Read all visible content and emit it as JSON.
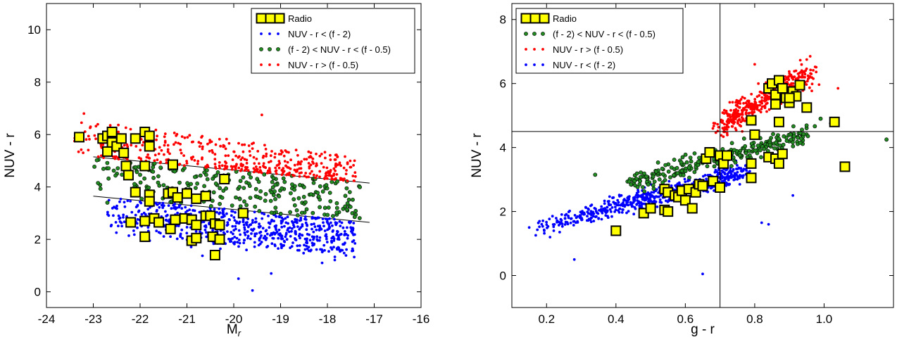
{
  "colors": {
    "radio_fill": "#ffff00",
    "radio_edge": "#000000",
    "blue": "#0000ff",
    "green": "#228b22",
    "red": "#ff0000",
    "reference_line": "#000000"
  },
  "chart_data": [
    {
      "type": "scatter",
      "title": "",
      "xlabel": "M",
      "xlabel_sub": "r",
      "ylabel": "NUV - r",
      "xlim": [
        -24,
        -16
      ],
      "ylim": [
        -0.6,
        11
      ],
      "xticks": [
        -24,
        -23,
        -22,
        -21,
        -20,
        -19,
        -18,
        -17,
        -16
      ],
      "xtick_labels": [
        "-24",
        "-23",
        "-22",
        "-21",
        "-20",
        "-19",
        "-18",
        "-17",
        "-16"
      ],
      "yticks": [
        0,
        2,
        4,
        6,
        8,
        10
      ],
      "ytick_labels": [
        "0",
        "2",
        "4",
        "6",
        "8",
        "10"
      ],
      "grid": false,
      "legend_position": "top-right",
      "legend": [
        {
          "label": "Radio",
          "marker": "square",
          "color": "#ffff00"
        },
        {
          "label": "NUV - r < (f - 2)",
          "marker": "dot",
          "color": "#0000ff"
        },
        {
          "label": "(f - 2) < NUV - r < (f - 0.5)",
          "marker": "circle",
          "color": "#228b22"
        },
        {
          "label": "NUV - r > (f - 0.5)",
          "marker": "dot",
          "color": "#ff0000"
        }
      ],
      "lines": [
        {
          "x": [
            -23,
            -17.1
          ],
          "y": [
            5.15,
            4.15
          ]
        },
        {
          "x": [
            -23,
            -17.1
          ],
          "y": [
            3.65,
            2.65
          ]
        }
      ],
      "clouds": [
        {
          "series": "blue",
          "count": 650,
          "x_range": [
            -22.7,
            -17.4
          ],
          "upper": {
            "x": [
              -23,
              -17.1
            ],
            "y": [
              3.65,
              2.65
            ]
          },
          "floor": {
            "x": [
              -22.7,
              -17.4
            ],
            "y": [
              2.2,
              1.4
            ]
          },
          "extras": [
            [
              -19.9,
              0.5
            ],
            [
              -19.6,
              0.05
            ],
            [
              -19.2,
              0.7
            ]
          ]
        },
        {
          "series": "green",
          "count": 250,
          "x_range": [
            -23.0,
            -17.3
          ],
          "lower": {
            "x": [
              -23,
              -17.1
            ],
            "y": [
              3.65,
              2.65
            ]
          },
          "upper": {
            "x": [
              -23,
              -17.1
            ],
            "y": [
              5.15,
              4.15
            ]
          },
          "extras": [
            [
              -22.9,
              4.15
            ],
            [
              -22.7,
              3.4
            ]
          ]
        },
        {
          "series": "red",
          "count": 430,
          "x_range": [
            -23.4,
            -17.4
          ],
          "lower": {
            "x": [
              -23,
              -17.1
            ],
            "y": [
              5.15,
              4.15
            ]
          },
          "ceiling": {
            "x": [
              -23.4,
              -17.4
            ],
            "y": [
              6.6,
              5.2
            ]
          },
          "extras": [
            [
              -23.4,
              5.75
            ],
            [
              -23.2,
              6.8
            ],
            [
              -19.4,
              6.75
            ],
            [
              -17.6,
              4.5
            ],
            [
              -17.4,
              4.4
            ]
          ]
        }
      ],
      "series": [
        {
          "name": "Radio",
          "marker": "square",
          "points": [
            [
              -23.3,
              5.9
            ],
            [
              -22.8,
              5.85
            ],
            [
              -22.7,
              5.95
            ],
            [
              -22.6,
              6.1
            ],
            [
              -22.6,
              5.7
            ],
            [
              -22.7,
              5.35
            ],
            [
              -22.5,
              5.55
            ],
            [
              -22.4,
              5.85
            ],
            [
              -22.35,
              5.3
            ],
            [
              -22.1,
              5.85
            ],
            [
              -21.9,
              6.1
            ],
            [
              -21.8,
              5.95
            ],
            [
              -21.8,
              5.55
            ],
            [
              -22.3,
              4.8
            ],
            [
              -22.25,
              4.45
            ],
            [
              -21.9,
              4.8
            ],
            [
              -21.3,
              4.85
            ],
            [
              -20.2,
              4.3
            ],
            [
              -22.1,
              3.8
            ],
            [
              -21.8,
              3.7
            ],
            [
              -21.8,
              3.45
            ],
            [
              -21.4,
              3.75
            ],
            [
              -21.3,
              3.8
            ],
            [
              -21.2,
              3.6
            ],
            [
              -21.0,
              3.75
            ],
            [
              -20.8,
              3.55
            ],
            [
              -20.6,
              3.65
            ],
            [
              -22.2,
              2.65
            ],
            [
              -21.9,
              2.7
            ],
            [
              -21.7,
              2.8
            ],
            [
              -21.6,
              2.65
            ],
            [
              -21.35,
              2.4
            ],
            [
              -21.25,
              2.75
            ],
            [
              -21.05,
              2.8
            ],
            [
              -20.9,
              2.75
            ],
            [
              -20.8,
              2.55
            ],
            [
              -20.6,
              2.9
            ],
            [
              -20.5,
              2.9
            ],
            [
              -20.4,
              2.6
            ],
            [
              -20.3,
              2.55
            ],
            [
              -19.8,
              3.0
            ],
            [
              -21.9,
              2.1
            ],
            [
              -20.9,
              1.95
            ],
            [
              -20.8,
              2.05
            ],
            [
              -20.45,
              2.1
            ],
            [
              -20.3,
              2.0
            ],
            [
              -20.4,
              1.4
            ]
          ]
        }
      ]
    },
    {
      "type": "scatter",
      "title": "",
      "xlabel": "g - r",
      "ylabel": "NUV - r",
      "xlim": [
        0.1,
        1.2
      ],
      "ylim": [
        -1,
        8.5
      ],
      "xticks": [
        0.2,
        0.4,
        0.6,
        0.8,
        1.0
      ],
      "xtick_labels": [
        "0.2",
        "0.4",
        "0.6",
        "0.8",
        "1.0"
      ],
      "yticks": [
        0,
        2,
        4,
        6,
        8
      ],
      "ytick_labels": [
        "0",
        "2",
        "4",
        "6",
        "8"
      ],
      "grid": false,
      "legend_position": "top-left",
      "legend": [
        {
          "label": "Radio",
          "marker": "square",
          "color": "#ffff00"
        },
        {
          "label": "(f - 2) < NUV - r < (f - 0.5)",
          "marker": "circle",
          "color": "#228b22"
        },
        {
          "label": "NUV - r > (f - 0.5)",
          "marker": "dot",
          "color": "#ff0000"
        },
        {
          "label": "NUV - r < (f - 2)",
          "marker": "dot",
          "color": "#0000ff"
        }
      ],
      "reference_lines": {
        "vertical_x": 0.7,
        "horizontal_y": 4.5
      },
      "clouds": [
        {
          "series": "blue",
          "count": 650,
          "center": {
            "x": [
              0.16,
              0.78
            ],
            "y": [
              1.45,
              3.25
            ]
          },
          "spread": 0.42,
          "extras": [
            [
              0.15,
              1.5
            ],
            [
              0.21,
              1.2
            ],
            [
              0.28,
              0.5
            ],
            [
              0.65,
              0.05
            ],
            [
              0.82,
              1.65
            ],
            [
              0.84,
              1.6
            ],
            [
              0.91,
              2.5
            ]
          ]
        },
        {
          "series": "green",
          "count": 250,
          "center": {
            "x": [
              0.42,
              0.96
            ],
            "y": [
              2.85,
              4.45
            ]
          },
          "spread": 0.45,
          "extras": [
            [
              0.34,
              3.15
            ],
            [
              1.18,
              4.25
            ],
            [
              0.99,
              4.9
            ],
            [
              1.02,
              4.75
            ]
          ]
        },
        {
          "series": "red",
          "count": 430,
          "center": {
            "x": [
              0.7,
              0.96
            ],
            "y": [
              4.7,
              6.3
            ]
          },
          "spread": 0.6,
          "extras": [
            [
              0.96,
              6.85
            ],
            [
              0.95,
              6.75
            ],
            [
              1.04,
              5.85
            ],
            [
              0.8,
              6.6
            ]
          ]
        }
      ],
      "series": [
        {
          "name": "Radio",
          "marker": "square",
          "points": [
            [
              0.4,
              1.4
            ],
            [
              0.48,
              1.95
            ],
            [
              0.5,
              2.1
            ],
            [
              0.54,
              2.05
            ],
            [
              0.55,
              2.0
            ],
            [
              0.54,
              2.7
            ],
            [
              0.55,
              2.6
            ],
            [
              0.57,
              2.5
            ],
            [
              0.58,
              2.45
            ],
            [
              0.59,
              2.65
            ],
            [
              0.6,
              2.35
            ],
            [
              0.61,
              2.7
            ],
            [
              0.62,
              2.1
            ],
            [
              0.63,
              2.6
            ],
            [
              0.64,
              2.85
            ],
            [
              0.65,
              2.8
            ],
            [
              0.68,
              2.95
            ],
            [
              0.7,
              2.75
            ],
            [
              0.66,
              3.65
            ],
            [
              0.67,
              3.85
            ],
            [
              0.7,
              3.75
            ],
            [
              0.71,
              3.5
            ],
            [
              0.72,
              3.75
            ],
            [
              0.79,
              3.05
            ],
            [
              0.79,
              3.5
            ],
            [
              0.8,
              4.4
            ],
            [
              0.84,
              3.7
            ],
            [
              0.86,
              3.65
            ],
            [
              0.87,
              3.5
            ],
            [
              0.88,
              3.8
            ],
            [
              0.79,
              4.85
            ],
            [
              0.87,
              4.8
            ],
            [
              1.03,
              4.8
            ],
            [
              1.06,
              3.4
            ],
            [
              0.84,
              5.85
            ],
            [
              0.85,
              6.0
            ],
            [
              0.86,
              5.65
            ],
            [
              0.86,
              5.35
            ],
            [
              0.87,
              6.1
            ],
            [
              0.88,
              5.85
            ],
            [
              0.89,
              5.55
            ],
            [
              0.9,
              5.4
            ],
            [
              0.91,
              5.75
            ],
            [
              0.92,
              5.6
            ],
            [
              0.93,
              5.95
            ],
            [
              0.95,
              5.25
            ],
            [
              0.9,
              5.55
            ]
          ]
        }
      ]
    }
  ]
}
